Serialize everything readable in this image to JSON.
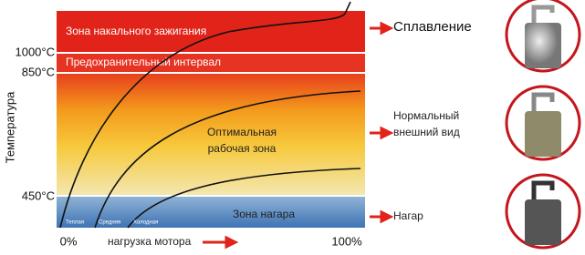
{
  "zones": {
    "glow": "Зона накального зажигания",
    "safety": "Предохранительный интервал",
    "optimal": [
      "Оптимальная",
      "рабочая зона"
    ],
    "carbon": "Зона нагара"
  },
  "temperature_axis": {
    "label": "Температура",
    "ticks": [
      "1000°C",
      "850°C",
      "450°C"
    ]
  },
  "load_axis": {
    "label": "нагрузка мотора",
    "ticks": [
      "0%",
      "100%"
    ]
  },
  "curves": [
    "Теплая",
    "Средняя",
    "Холодная"
  ],
  "outcomes": {
    "melting": "Сплавление",
    "normal": [
      "Нормальный",
      "внешний вид"
    ],
    "carbon": "Нагар"
  }
}
